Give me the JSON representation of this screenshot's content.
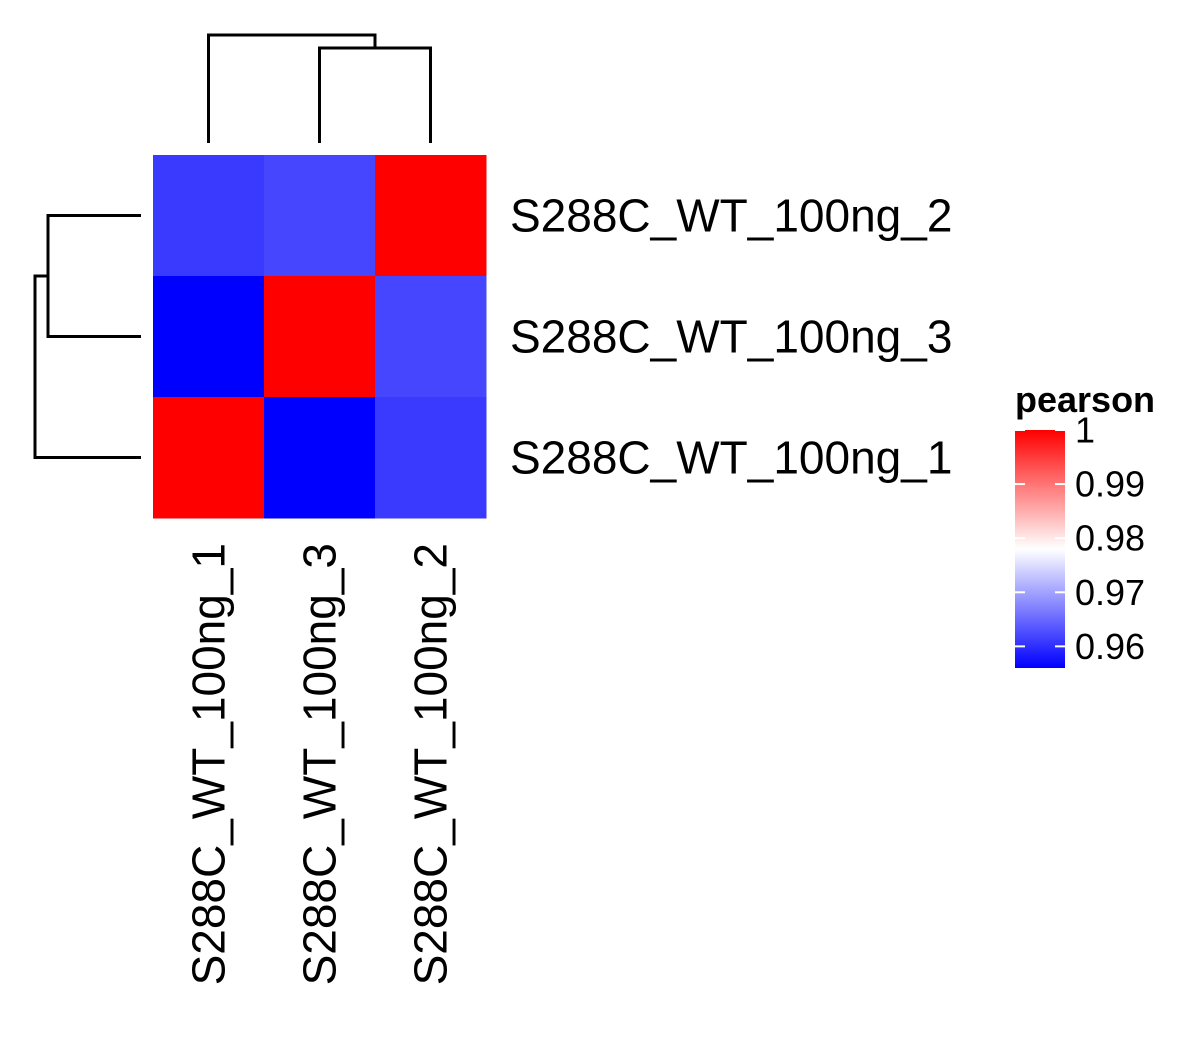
{
  "chart_data": {
    "type": "heatmap",
    "row_labels": [
      "S288C_WT_100ng_2",
      "S288C_WT_100ng_3",
      "S288C_WT_100ng_1"
    ],
    "col_labels": [
      "S288C_WT_100ng_1",
      "S288C_WT_100ng_3",
      "S288C_WT_100ng_2"
    ],
    "values": [
      [
        0.961,
        0.962,
        1.0
      ],
      [
        0.956,
        1.0,
        0.962
      ],
      [
        1.0,
        0.956,
        0.961
      ]
    ],
    "legend": {
      "title": "pearson",
      "ticks": [
        "1",
        "0.99",
        "0.98",
        "0.97",
        "0.96"
      ],
      "tick_values": [
        1.0,
        0.99,
        0.98,
        0.97,
        0.96
      ],
      "range": [
        0.956,
        1.0
      ],
      "placement": "right"
    },
    "colors": {
      "low": "#0000ff",
      "mid": "#ffffff",
      "high": "#ff0000"
    },
    "row_dendrogram": "left",
    "col_dendrogram": "top"
  }
}
